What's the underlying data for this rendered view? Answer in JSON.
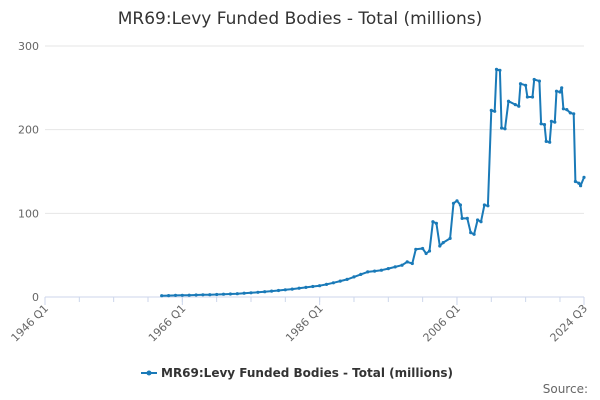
{
  "chart_data": {
    "type": "line",
    "title": "MR69:Levy Funded Bodies - Total (millions)",
    "xlabel": "",
    "ylabel": "",
    "x_tick_labels": [
      "1946 Q1",
      "1966 Q1",
      "1986 Q1",
      "2006 Q1",
      "2024 Q3"
    ],
    "x_tick_values": [
      1946.0,
      1966.0,
      1986.0,
      2006.0,
      2024.5
    ],
    "xlim": [
      1946.0,
      2024.5
    ],
    "y_ticks": [
      0,
      100,
      200,
      300
    ],
    "ylim": [
      0,
      300
    ],
    "grid": true,
    "legend_position": "bottom",
    "source_text": "Source:",
    "colors": {
      "series": "#1a7ab8",
      "grid": "#e6e6e6",
      "axis": "#ccd6eb"
    },
    "series": [
      {
        "name": "MR69:Levy Funded Bodies - Total (millions)",
        "points": [
          [
            1963.0,
            1.5
          ],
          [
            1964.0,
            1.7
          ],
          [
            1965.0,
            1.9
          ],
          [
            1966.0,
            2.0
          ],
          [
            1967.0,
            2.2
          ],
          [
            1968.0,
            2.4
          ],
          [
            1969.0,
            2.6
          ],
          [
            1970.0,
            2.8
          ],
          [
            1971.0,
            3.0
          ],
          [
            1972.0,
            3.3
          ],
          [
            1973.0,
            3.6
          ],
          [
            1974.0,
            4.0
          ],
          [
            1975.0,
            4.5
          ],
          [
            1976.0,
            5.0
          ],
          [
            1977.0,
            5.6
          ],
          [
            1978.0,
            6.3
          ],
          [
            1979.0,
            7.0
          ],
          [
            1980.0,
            7.8
          ],
          [
            1981.0,
            8.6
          ],
          [
            1982.0,
            9.5
          ],
          [
            1983.0,
            10.5
          ],
          [
            1984.0,
            11.5
          ],
          [
            1985.0,
            12.5
          ],
          [
            1986.0,
            13.5
          ],
          [
            1987.0,
            15.0
          ],
          [
            1988.0,
            17.0
          ],
          [
            1989.0,
            19.0
          ],
          [
            1990.0,
            21.0
          ],
          [
            1991.0,
            24.0
          ],
          [
            1992.0,
            27.0
          ],
          [
            1993.0,
            30.0
          ],
          [
            1994.0,
            31.0
          ],
          [
            1995.0,
            32.0
          ],
          [
            1996.0,
            34.0
          ],
          [
            1997.0,
            36.0
          ],
          [
            1998.0,
            38.0
          ],
          [
            1998.75,
            42.0
          ],
          [
            1999.5,
            40.0
          ],
          [
            2000.0,
            57.0
          ],
          [
            2001.0,
            58.0
          ],
          [
            2001.5,
            52.0
          ],
          [
            2002.0,
            55.0
          ],
          [
            2002.5,
            90.0
          ],
          [
            2003.0,
            88.0
          ],
          [
            2003.5,
            61.0
          ],
          [
            2004.0,
            65.0
          ],
          [
            2005.0,
            70.0
          ],
          [
            2005.5,
            112.0
          ],
          [
            2006.0,
            115.0
          ],
          [
            2006.5,
            110.0
          ],
          [
            2006.75,
            94.0
          ],
          [
            2007.5,
            94.0
          ],
          [
            2008.0,
            77.0
          ],
          [
            2008.5,
            75.0
          ],
          [
            2009.0,
            92.0
          ],
          [
            2009.5,
            90.0
          ],
          [
            2010.0,
            110.0
          ],
          [
            2010.5,
            109.0
          ],
          [
            2011.0,
            223.0
          ],
          [
            2011.5,
            222.0
          ],
          [
            2011.75,
            272.0
          ],
          [
            2012.25,
            271.0
          ],
          [
            2012.5,
            202.0
          ],
          [
            2013.0,
            201.0
          ],
          [
            2013.5,
            234.0
          ],
          [
            2014.5,
            230.0
          ],
          [
            2015.0,
            228.0
          ],
          [
            2015.25,
            255.0
          ],
          [
            2016.0,
            253.0
          ],
          [
            2016.25,
            239.0
          ],
          [
            2017.0,
            239.0
          ],
          [
            2017.25,
            260.0
          ],
          [
            2018.0,
            258.0
          ],
          [
            2018.25,
            207.0
          ],
          [
            2018.75,
            206.0
          ],
          [
            2019.0,
            186.0
          ],
          [
            2019.5,
            185.0
          ],
          [
            2019.75,
            210.0
          ],
          [
            2020.25,
            209.0
          ],
          [
            2020.5,
            246.0
          ],
          [
            2021.0,
            245.0
          ],
          [
            2021.25,
            250.0
          ],
          [
            2021.5,
            225.0
          ],
          [
            2022.0,
            224.0
          ],
          [
            2022.5,
            220.0
          ],
          [
            2023.0,
            219.0
          ],
          [
            2023.25,
            138.0
          ],
          [
            2023.75,
            136.0
          ],
          [
            2024.0,
            133.0
          ],
          [
            2024.5,
            143.0
          ]
        ]
      }
    ]
  }
}
